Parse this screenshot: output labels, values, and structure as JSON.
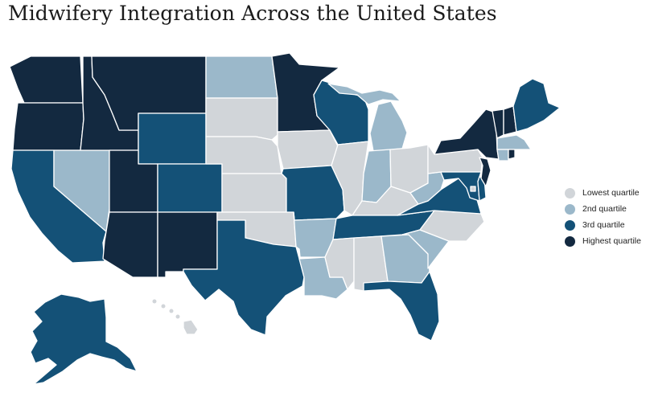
{
  "title": "Midwifery Integration Across the United States",
  "colors": {
    "lowest": "#d1d5d9",
    "second": "#9bb8ca",
    "third": "#145177",
    "highest": "#132940"
  },
  "legend": [
    {
      "key": "lowest",
      "label": "Lowest quartile"
    },
    {
      "key": "second",
      "label": "2nd quartile"
    },
    {
      "key": "third",
      "label": "3rd quartile"
    },
    {
      "key": "highest",
      "label": "Highest quartile"
    }
  ],
  "states": [
    {
      "abbr": "WA",
      "quartile": "highest"
    },
    {
      "abbr": "OR",
      "quartile": "highest"
    },
    {
      "abbr": "CA",
      "quartile": "third"
    },
    {
      "abbr": "NV",
      "quartile": "second"
    },
    {
      "abbr": "ID",
      "quartile": "highest"
    },
    {
      "abbr": "MT",
      "quartile": "highest"
    },
    {
      "abbr": "WY",
      "quartile": "third"
    },
    {
      "abbr": "UT",
      "quartile": "highest"
    },
    {
      "abbr": "CO",
      "quartile": "third"
    },
    {
      "abbr": "AZ",
      "quartile": "highest"
    },
    {
      "abbr": "NM",
      "quartile": "highest"
    },
    {
      "abbr": "ND",
      "quartile": "second"
    },
    {
      "abbr": "SD",
      "quartile": "lowest"
    },
    {
      "abbr": "NE",
      "quartile": "lowest"
    },
    {
      "abbr": "KS",
      "quartile": "lowest"
    },
    {
      "abbr": "OK",
      "quartile": "lowest"
    },
    {
      "abbr": "TX",
      "quartile": "third"
    },
    {
      "abbr": "MN",
      "quartile": "highest"
    },
    {
      "abbr": "IA",
      "quartile": "lowest"
    },
    {
      "abbr": "MO",
      "quartile": "third"
    },
    {
      "abbr": "AR",
      "quartile": "second"
    },
    {
      "abbr": "LA",
      "quartile": "second"
    },
    {
      "abbr": "WI",
      "quartile": "third"
    },
    {
      "abbr": "IL",
      "quartile": "lowest"
    },
    {
      "abbr": "MI",
      "quartile": "second"
    },
    {
      "abbr": "IN",
      "quartile": "second"
    },
    {
      "abbr": "OH",
      "quartile": "lowest"
    },
    {
      "abbr": "KY",
      "quartile": "lowest"
    },
    {
      "abbr": "TN",
      "quartile": "third"
    },
    {
      "abbr": "MS",
      "quartile": "lowest"
    },
    {
      "abbr": "AL",
      "quartile": "lowest"
    },
    {
      "abbr": "GA",
      "quartile": "second"
    },
    {
      "abbr": "FL",
      "quartile": "third"
    },
    {
      "abbr": "SC",
      "quartile": "second"
    },
    {
      "abbr": "NC",
      "quartile": "lowest"
    },
    {
      "abbr": "VA",
      "quartile": "third"
    },
    {
      "abbr": "WV",
      "quartile": "second"
    },
    {
      "abbr": "PA",
      "quartile": "lowest"
    },
    {
      "abbr": "NY",
      "quartile": "highest"
    },
    {
      "abbr": "VT",
      "quartile": "highest"
    },
    {
      "abbr": "NH",
      "quartile": "highest"
    },
    {
      "abbr": "ME",
      "quartile": "third"
    },
    {
      "abbr": "MA",
      "quartile": "second"
    },
    {
      "abbr": "RI",
      "quartile": "highest"
    },
    {
      "abbr": "CT",
      "quartile": "second"
    },
    {
      "abbr": "NJ",
      "quartile": "highest"
    },
    {
      "abbr": "DE",
      "quartile": "third"
    },
    {
      "abbr": "MD",
      "quartile": "third"
    },
    {
      "abbr": "DC",
      "quartile": "lowest"
    },
    {
      "abbr": "AK",
      "quartile": "third"
    },
    {
      "abbr": "HI",
      "quartile": "lowest"
    }
  ]
}
